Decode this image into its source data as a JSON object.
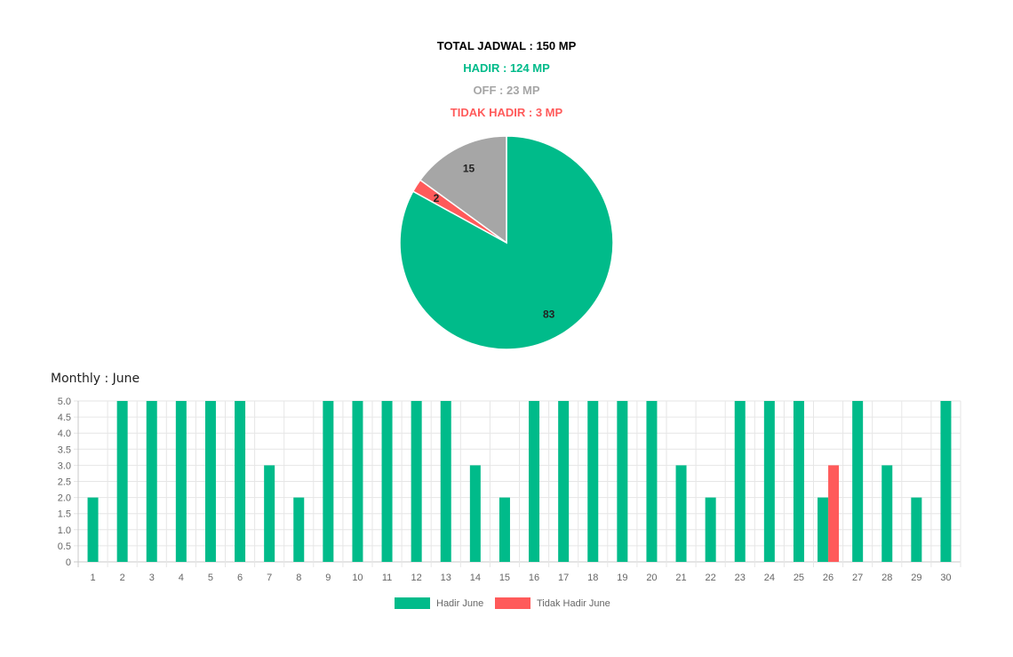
{
  "summary": {
    "total_label": "TOTAL JADWAL : 150 MP",
    "hadir_label": "HADIR : 124 MP",
    "off_label": "OFF : 23 MP",
    "tidak_hadir_label": "TIDAK HADIR : 3 MP"
  },
  "colors": {
    "hadir": "#00bb8a",
    "off": "#a6a6a6",
    "tidak_hadir": "#ff5a5a"
  },
  "monthly": {
    "title": "Monthly : June"
  },
  "chart_data": [
    {
      "type": "pie",
      "slices": [
        {
          "name": "Hadir",
          "value": 83,
          "label": "83",
          "color": "#00bb8a"
        },
        {
          "name": "Tidak Hadir",
          "value": 2,
          "label": "2",
          "color": "#ff5a5a"
        },
        {
          "name": "Off",
          "value": 15,
          "label": "15",
          "color": "#a6a6a6"
        }
      ]
    },
    {
      "type": "bar",
      "title": "Monthly : June",
      "categories": [
        "1",
        "2",
        "3",
        "4",
        "5",
        "6",
        "7",
        "8",
        "9",
        "10",
        "11",
        "12",
        "13",
        "14",
        "15",
        "16",
        "17",
        "18",
        "19",
        "20",
        "21",
        "22",
        "23",
        "24",
        "25",
        "26",
        "27",
        "28",
        "29",
        "30"
      ],
      "series": [
        {
          "name": "Hadir June",
          "color": "#00bb8a",
          "values": [
            2,
            5,
            5,
            5,
            5,
            5,
            3,
            2,
            5,
            5,
            5,
            5,
            5,
            3,
            2,
            5,
            5,
            5,
            5,
            5,
            3,
            2,
            5,
            5,
            5,
            2,
            5,
            3,
            2,
            5
          ]
        },
        {
          "name": "Tidak Hadir June",
          "color": "#ff5a5a",
          "values": [
            0,
            0,
            0,
            0,
            0,
            0,
            0,
            0,
            0,
            0,
            0,
            0,
            0,
            0,
            0,
            0,
            0,
            0,
            0,
            0,
            0,
            0,
            0,
            0,
            0,
            3,
            0,
            0,
            0,
            0
          ]
        }
      ],
      "ylim": [
        0,
        5
      ],
      "yticks": [
        "0",
        "0.5",
        "1.0",
        "1.5",
        "2.0",
        "2.5",
        "3.0",
        "3.5",
        "4.0",
        "4.5",
        "5.0"
      ],
      "grid": true,
      "legend": "bottom"
    }
  ]
}
